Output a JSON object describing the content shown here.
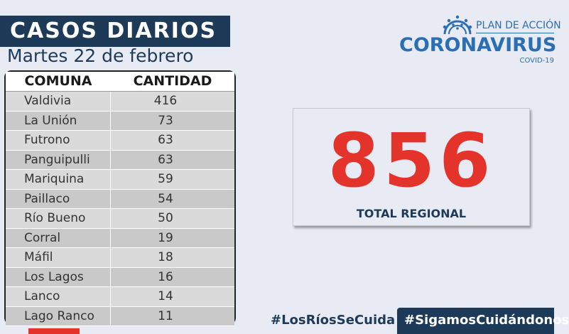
{
  "header": {
    "title": "CASOS DIARIOS",
    "date": "Martes 22 de febrero"
  },
  "table": {
    "columns": [
      "COMUNA",
      "CANTIDAD"
    ],
    "rows": [
      {
        "comuna": "Valdivia",
        "cantidad": "416"
      },
      {
        "comuna": "La Unión",
        "cantidad": "73"
      },
      {
        "comuna": "Futrono",
        "cantidad": "63"
      },
      {
        "comuna": "Panguipulli",
        "cantidad": "63"
      },
      {
        "comuna": "Mariquina",
        "cantidad": "59"
      },
      {
        "comuna": "Paillaco",
        "cantidad": "54"
      },
      {
        "comuna": "Río Bueno",
        "cantidad": "50"
      },
      {
        "comuna": "Corral",
        "cantidad": "19"
      },
      {
        "comuna": "Máfil",
        "cantidad": "18"
      },
      {
        "comuna": "Los Lagos",
        "cantidad": "16"
      },
      {
        "comuna": "Lanco",
        "cantidad": "14"
      },
      {
        "comuna": "Lago Ranco",
        "cantidad": "11"
      }
    ]
  },
  "logo": {
    "plan": "PLAN DE ACCIÓN",
    "main": "CORONAVIRUS",
    "sub": "COVID-19"
  },
  "total": {
    "number": "856",
    "label": "TOTAL REGIONAL"
  },
  "footer": {
    "hashtag1": "#LosRíosSeCuida",
    "hashtag2": "#SigamosCuidándonos"
  },
  "colors": {
    "navy": "#1d3a58",
    "red": "#e4332a",
    "blue": "#2a6fb3",
    "background": "#e9ebf4"
  }
}
